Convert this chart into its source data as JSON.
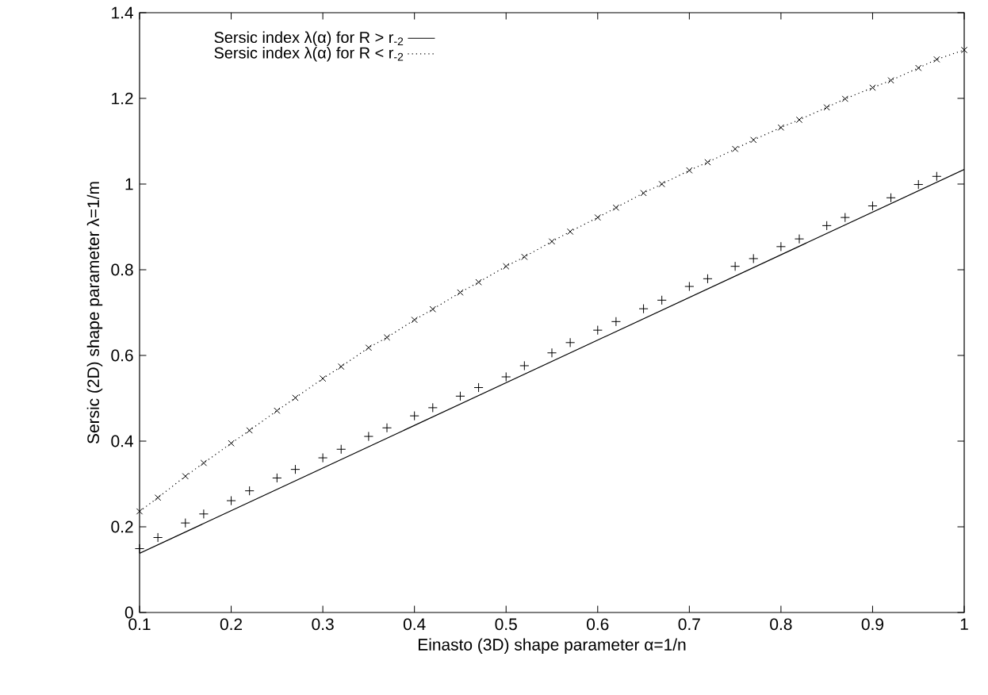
{
  "chart_data": {
    "type": "line",
    "xlabel": "Einasto (3D) shape parameter α=1/n",
    "ylabel": "Sersic (2D) shape parameter λ=1/m",
    "xlim": [
      0.1,
      1
    ],
    "ylim": [
      0,
      1.4
    ],
    "xticks": [
      0.1,
      0.2,
      0.3,
      0.4,
      0.5,
      0.6,
      0.7,
      0.8,
      0.9,
      1
    ],
    "yticks": [
      0,
      0.2,
      0.4,
      0.6,
      0.8,
      1,
      1.2,
      1.4
    ],
    "legend": "top left",
    "series": [
      {
        "name": "Sersic index λ(α) for R > r$_{-2}$",
        "line_style": "solid",
        "color": "#000000",
        "x": [
          0.1,
          1.0
        ],
        "values": [
          0.138,
          1.034
        ]
      },
      {
        "name": "Sersic index λ(α) for R < r$_{-2}$",
        "line_style": "dotted",
        "marker": "cross",
        "color": "#000000",
        "x": [
          0.1,
          0.12,
          0.15,
          0.17,
          0.2,
          0.22,
          0.25,
          0.27,
          0.3,
          0.32,
          0.35,
          0.37,
          0.4,
          0.42,
          0.45,
          0.47,
          0.5,
          0.52,
          0.55,
          0.57,
          0.6,
          0.62,
          0.65,
          0.67,
          0.7,
          0.72,
          0.75,
          0.77,
          0.8,
          0.82,
          0.85,
          0.87,
          0.9,
          0.92,
          0.95,
          0.97,
          1.0
        ],
        "values": [
          0.236,
          0.268,
          0.318,
          0.349,
          0.395,
          0.425,
          0.471,
          0.501,
          0.546,
          0.574,
          0.618,
          0.642,
          0.683,
          0.708,
          0.747,
          0.771,
          0.808,
          0.83,
          0.866,
          0.889,
          0.922,
          0.945,
          0.979,
          1.0,
          1.032,
          1.051,
          1.082,
          1.103,
          1.132,
          1.15,
          1.179,
          1.199,
          1.225,
          1.242,
          1.271,
          1.291,
          1.313
        ]
      },
      {
        "type": "scatter",
        "marker": "plus",
        "color": "#000000",
        "x": [
          0.1,
          0.12,
          0.15,
          0.17,
          0.2,
          0.22,
          0.25,
          0.27,
          0.3,
          0.32,
          0.35,
          0.37,
          0.4,
          0.42,
          0.45,
          0.47,
          0.5,
          0.52,
          0.55,
          0.57,
          0.6,
          0.62,
          0.65,
          0.67,
          0.7,
          0.72,
          0.75,
          0.77,
          0.8,
          0.82,
          0.85,
          0.87,
          0.9,
          0.92,
          0.95,
          0.97
        ],
        "values": [
          0.149,
          0.175,
          0.209,
          0.23,
          0.261,
          0.284,
          0.314,
          0.334,
          0.361,
          0.381,
          0.411,
          0.431,
          0.459,
          0.478,
          0.505,
          0.525,
          0.55,
          0.576,
          0.606,
          0.63,
          0.659,
          0.679,
          0.709,
          0.729,
          0.761,
          0.779,
          0.808,
          0.826,
          0.854,
          0.872,
          0.903,
          0.922,
          0.949,
          0.968,
          0.999,
          1.018
        ]
      }
    ]
  }
}
